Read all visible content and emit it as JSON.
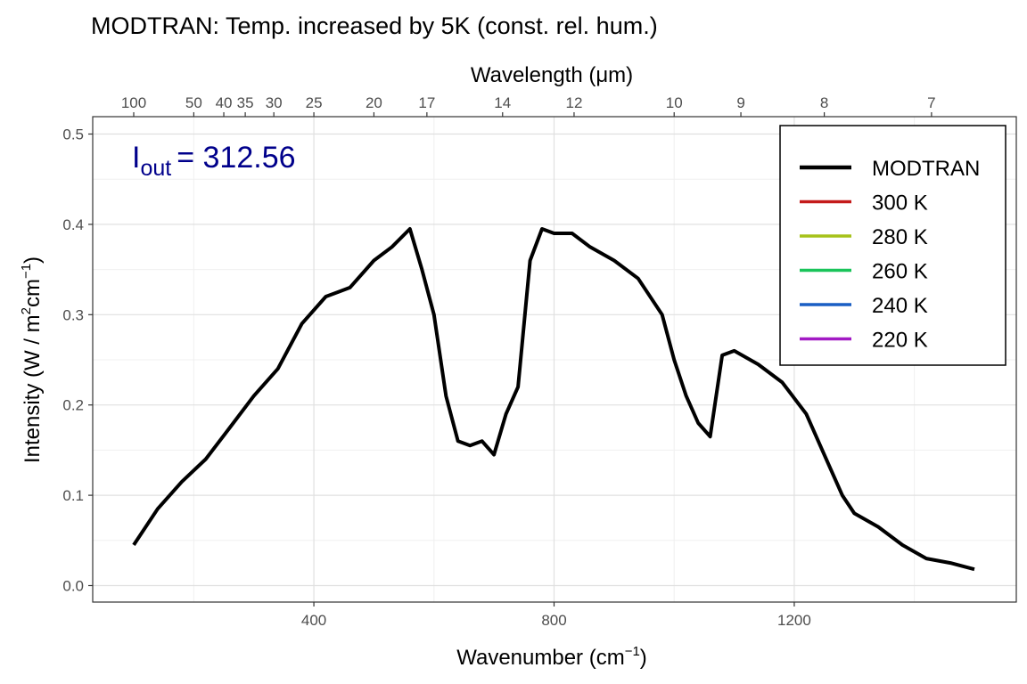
{
  "chart_data": {
    "type": "line",
    "title": "MODTRAN: Temp. increased by 5K (const. rel. hum.)",
    "xlabel": "Wavenumber (cm",
    "xlabel_sup": "−1",
    "xlabel_tail": ")",
    "x2label": "Wavelength (μm)",
    "ylabel_parts": [
      "Intensity (W / m",
      "2",
      "cm",
      "−1",
      ")"
    ],
    "xlim": [
      100,
      1500
    ],
    "ylim": [
      0,
      0.5
    ],
    "x_ticks": [
      400,
      800,
      1200
    ],
    "y_ticks": [
      0.0,
      0.1,
      0.2,
      0.3,
      0.4,
      0.5
    ],
    "x_tick_labels": [
      "400",
      "800",
      "1200"
    ],
    "y_tick_labels": [
      "0.0",
      "0.1",
      "0.2",
      "0.3",
      "0.4",
      "0.5"
    ],
    "x2_ticks": [
      100,
      50,
      40,
      35,
      30,
      25,
      20,
      17,
      14,
      12,
      10,
      9,
      8,
      7
    ],
    "x2_tick_labels": [
      "100",
      "50",
      "40",
      "35",
      "30",
      "25",
      "20",
      "17",
      "14",
      "12",
      "10",
      "9",
      "8",
      "7"
    ],
    "annotation": {
      "symbol": "I",
      "subscript": "out",
      "text": "= 312.56"
    },
    "legend_position": "top-right",
    "grid": true,
    "series": [
      {
        "name": "MODTRAN",
        "color": "#000000",
        "line_width": "thick",
        "x": [
          100,
          140,
          180,
          220,
          260,
          300,
          340,
          380,
          420,
          460,
          500,
          530,
          560,
          580,
          600,
          620,
          640,
          660,
          680,
          700,
          720,
          740,
          760,
          780,
          800,
          830,
          860,
          900,
          940,
          980,
          1000,
          1020,
          1040,
          1060,
          1080,
          1100,
          1140,
          1180,
          1220,
          1260,
          1280,
          1300,
          1340,
          1380,
          1420,
          1460,
          1500
        ],
        "y": [
          0.045,
          0.085,
          0.115,
          0.14,
          0.175,
          0.21,
          0.24,
          0.29,
          0.32,
          0.33,
          0.36,
          0.375,
          0.395,
          0.35,
          0.3,
          0.21,
          0.16,
          0.155,
          0.16,
          0.145,
          0.19,
          0.22,
          0.36,
          0.395,
          0.39,
          0.39,
          0.375,
          0.36,
          0.34,
          0.3,
          0.25,
          0.21,
          0.18,
          0.165,
          0.255,
          0.26,
          0.245,
          0.225,
          0.19,
          0.13,
          0.1,
          0.08,
          0.065,
          0.045,
          0.03,
          0.025,
          0.018
        ]
      },
      {
        "name": "300 K",
        "color": "#c41a1a",
        "temperature": 300
      },
      {
        "name": "280 K",
        "color": "#a6c21a",
        "temperature": 280
      },
      {
        "name": "260 K",
        "color": "#1ac45a",
        "temperature": 260
      },
      {
        "name": "240 K",
        "color": "#1a5ec4",
        "temperature": 240
      },
      {
        "name": "220 K",
        "color": "#a21ac4",
        "temperature": 220
      }
    ]
  }
}
